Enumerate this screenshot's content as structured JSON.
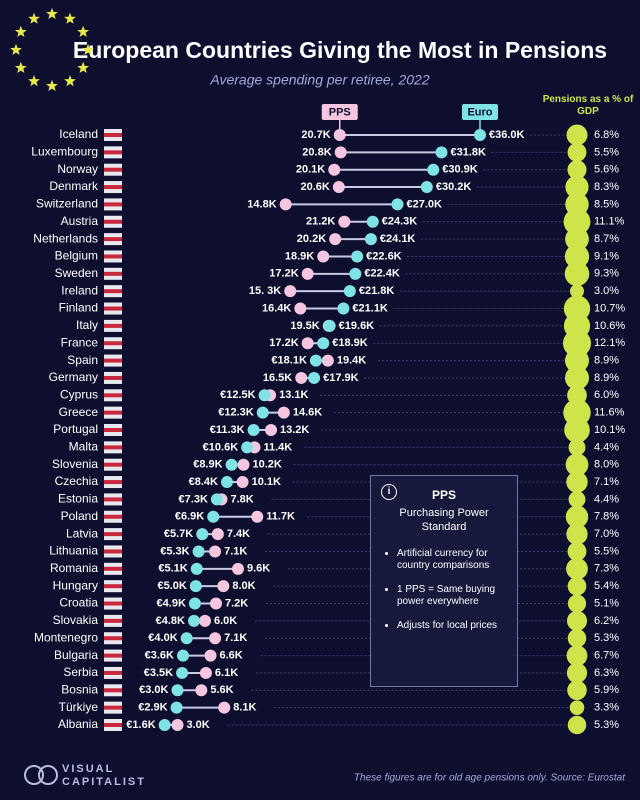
{
  "chart_data": {
    "type": "dumbbell",
    "title": "European Countries Giving the Most in Pensions",
    "subtitle": "Average spending per retiree, 2022",
    "categories": [
      "Iceland",
      "Luxembourg",
      "Norway",
      "Denmark",
      "Switzerland",
      "Austria",
      "Netherlands",
      "Belgium",
      "Sweden",
      "Ireland",
      "Finland",
      "Italy",
      "France",
      "Spain",
      "Germany",
      "Cyprus",
      "Greece",
      "Portugal",
      "Malta",
      "Slovenia",
      "Czechia",
      "Estonia",
      "Poland",
      "Latvia",
      "Lithuania",
      "Romania",
      "Hungary",
      "Croatia",
      "Slovakia",
      "Montenegro",
      "Bulgaria",
      "Serbia",
      "Bosnia",
      "Türkiye",
      "Albania"
    ],
    "series": [
      {
        "name": "PPS",
        "color": "#f6c6e0",
        "values": [
          20700,
          20800,
          20100,
          20600,
          14800,
          21200,
          20200,
          18900,
          17200,
          15300,
          16400,
          19500,
          17200,
          19400,
          16500,
          13100,
          14600,
          13200,
          11400,
          10200,
          10100,
          7800,
          11700,
          7400,
          7100,
          9600,
          8000,
          7200,
          6000,
          7100,
          6600,
          6100,
          5600,
          8100,
          3000
        ],
        "value_labels": [
          "20.7K",
          "20.8K",
          "20.1K",
          "20.6K",
          "14.8K",
          "21.2K",
          "20.2K",
          "18.9K",
          "17.2K",
          "15. 3K",
          "16.4K",
          "19.5K",
          "17.2K",
          "19.4K",
          "16.5K",
          "13.1K",
          "14.6K",
          "13.2K",
          "11.4K",
          "10.2K",
          "10.1K",
          "7.8K",
          "11.7K",
          "7.4K",
          "7.1K",
          "9.6K",
          "8.0K",
          "7.2K",
          "6.0K",
          "7.1K",
          "6.6K",
          "6.1K",
          "5.6K",
          "8.1K",
          "3.0K"
        ]
      },
      {
        "name": "Euro",
        "color": "#7fe3e6",
        "values": [
          36000,
          31800,
          30900,
          30200,
          27000,
          24300,
          24100,
          22600,
          22400,
          21800,
          21100,
          19600,
          18900,
          18100,
          17900,
          12500,
          12300,
          11300,
          10600,
          8900,
          8400,
          7300,
          6900,
          5700,
          5300,
          5100,
          5000,
          4900,
          4800,
          4000,
          3600,
          3500,
          3000,
          2900,
          1600
        ],
        "value_labels": [
          "€36.0K",
          "€31.8K",
          "€30.9K",
          "€30.2K",
          "€27.0K",
          "€24.3K",
          "€24.1K",
          "€22.6K",
          "€22.4K",
          "€21.8K",
          "€21.1K",
          "€19.6K",
          "€18.9K",
          "€18.1K",
          "€17.9K",
          "€12.5K",
          "€12.3K",
          "€11.3K",
          "€10.6K",
          "€8.9K",
          "€8.4K",
          "€7.3K",
          "€6.9K",
          "€5.7K",
          "€5.3K",
          "€5.1K",
          "€5.0K",
          "€4.9K",
          "€4.8K",
          "€4.0K",
          "€3.6K",
          "€3.5K",
          "€3.0K",
          "€2.9K",
          "€1.6K"
        ]
      },
      {
        "name": "Pensions as a % of GDP",
        "kind": "bubble",
        "color": "#cde44b",
        "values": [
          6.8,
          5.5,
          5.6,
          8.3,
          8.5,
          11.1,
          8.7,
          9.1,
          9.3,
          3.0,
          10.7,
          10.6,
          12.1,
          8.9,
          8.9,
          6.0,
          11.6,
          10.1,
          4.4,
          8.0,
          7.1,
          4.4,
          7.8,
          7.0,
          5.5,
          7.3,
          5.4,
          5.1,
          6.2,
          5.3,
          6.7,
          6.3,
          5.9,
          3.3,
          5.3
        ],
        "value_labels": [
          "6.8%",
          "5.5%",
          "5.6%",
          "8.3%",
          "8.5%",
          "11.1%",
          "8.7%",
          "9.1%",
          "9.3%",
          "3.0%",
          "10.7%",
          "10.6%",
          "12.1%",
          "8.9%",
          "8.9%",
          "6.0%",
          "11.6%",
          "10.1%",
          "4.4%",
          "8.0%",
          "7.1%",
          "4.4%",
          "7.8%",
          "7.0%",
          "5.5%",
          "7.3%",
          "5.4%",
          "5.1%",
          "6.2%",
          "5.3%",
          "6.7%",
          "6.3%",
          "5.9%",
          "3.3%",
          "5.3%"
        ]
      }
    ]
  },
  "info_box": {
    "title": "PPS",
    "subtitle": "Purchasing Power Standard",
    "bullets": [
      "Artificial currency for country comparisons",
      "1 PPS = Same buying power everywhere",
      "Adjusts for local prices"
    ]
  },
  "footer": {
    "logo": [
      "VISUAL",
      "CAPITALIST"
    ],
    "note": "These figures are for old age pensions only. Source: Eurostat"
  }
}
